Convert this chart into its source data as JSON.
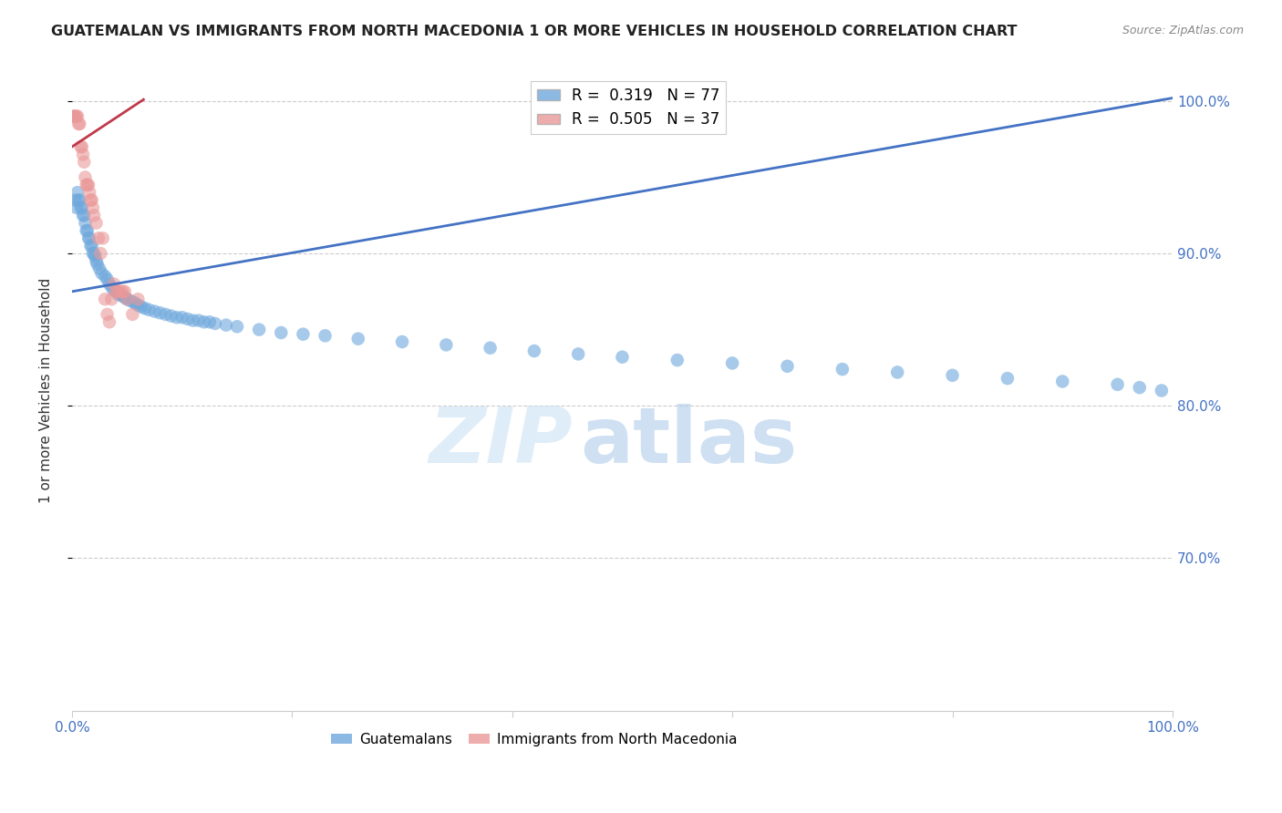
{
  "title": "GUATEMALAN VS IMMIGRANTS FROM NORTH MACEDONIA 1 OR MORE VEHICLES IN HOUSEHOLD CORRELATION CHART",
  "source": "Source: ZipAtlas.com",
  "ylabel": "1 or more Vehicles in Household",
  "xmin": 0.0,
  "xmax": 1.0,
  "ymin": 0.6,
  "ymax": 1.02,
  "ytick_positions": [
    0.7,
    0.8,
    0.9,
    1.0
  ],
  "ytick_labels": [
    "70.0%",
    "80.0%",
    "90.0%",
    "100.0%"
  ],
  "xtick_positions": [
    0.0,
    0.2,
    0.4,
    0.6,
    0.8,
    1.0
  ],
  "xtick_labels": [
    "0.0%",
    "",
    "",
    "",
    "",
    "100.0%"
  ],
  "blue_R": 0.319,
  "blue_N": 77,
  "pink_R": 0.505,
  "pink_N": 37,
  "blue_color": "#6fa8dc",
  "pink_color": "#ea9999",
  "trend_blue_color": "#4472c4",
  "trend_pink_color": "#c0394b",
  "blue_trend_x0": 0.0,
  "blue_trend_y0": 0.875,
  "blue_trend_x1": 1.0,
  "blue_trend_y1": 1.002,
  "pink_trend_x0": 0.0,
  "pink_trend_y0": 0.97,
  "pink_trend_x1": 0.065,
  "pink_trend_y1": 1.001,
  "blue_x": [
    0.003,
    0.004,
    0.005,
    0.006,
    0.007,
    0.008,
    0.009,
    0.01,
    0.011,
    0.012,
    0.013,
    0.014,
    0.015,
    0.016,
    0.017,
    0.018,
    0.019,
    0.02,
    0.021,
    0.022,
    0.023,
    0.025,
    0.027,
    0.03,
    0.032,
    0.034,
    0.036,
    0.038,
    0.04,
    0.042,
    0.044,
    0.046,
    0.048,
    0.05,
    0.053,
    0.056,
    0.058,
    0.06,
    0.063,
    0.066,
    0.07,
    0.075,
    0.08,
    0.085,
    0.09,
    0.095,
    0.1,
    0.105,
    0.11,
    0.115,
    0.12,
    0.125,
    0.13,
    0.14,
    0.15,
    0.17,
    0.19,
    0.21,
    0.23,
    0.26,
    0.3,
    0.34,
    0.38,
    0.42,
    0.46,
    0.5,
    0.55,
    0.6,
    0.65,
    0.7,
    0.75,
    0.8,
    0.85,
    0.9,
    0.95,
    0.97,
    0.99
  ],
  "blue_y": [
    0.935,
    0.93,
    0.94,
    0.935,
    0.935,
    0.93,
    0.93,
    0.925,
    0.925,
    0.92,
    0.915,
    0.915,
    0.91,
    0.91,
    0.905,
    0.905,
    0.9,
    0.9,
    0.898,
    0.895,
    0.893,
    0.89,
    0.887,
    0.885,
    0.883,
    0.88,
    0.878,
    0.876,
    0.875,
    0.873,
    0.873,
    0.872,
    0.871,
    0.87,
    0.869,
    0.868,
    0.867,
    0.866,
    0.865,
    0.864,
    0.863,
    0.862,
    0.861,
    0.86,
    0.859,
    0.858,
    0.858,
    0.857,
    0.856,
    0.856,
    0.855,
    0.855,
    0.854,
    0.853,
    0.852,
    0.85,
    0.848,
    0.847,
    0.846,
    0.844,
    0.842,
    0.84,
    0.838,
    0.836,
    0.834,
    0.832,
    0.83,
    0.828,
    0.826,
    0.824,
    0.822,
    0.82,
    0.818,
    0.816,
    0.814,
    0.812,
    0.81
  ],
  "pink_x": [
    0.001,
    0.002,
    0.003,
    0.004,
    0.005,
    0.006,
    0.007,
    0.008,
    0.009,
    0.01,
    0.011,
    0.012,
    0.013,
    0.014,
    0.015,
    0.016,
    0.017,
    0.018,
    0.019,
    0.02,
    0.022,
    0.024,
    0.026,
    0.028,
    0.03,
    0.032,
    0.034,
    0.036,
    0.038,
    0.04,
    0.042,
    0.044,
    0.046,
    0.048,
    0.05,
    0.055,
    0.06
  ],
  "pink_y": [
    0.99,
    0.99,
    0.99,
    0.99,
    0.99,
    0.985,
    0.985,
    0.97,
    0.97,
    0.965,
    0.96,
    0.95,
    0.945,
    0.945,
    0.945,
    0.94,
    0.935,
    0.935,
    0.93,
    0.925,
    0.92,
    0.91,
    0.9,
    0.91,
    0.87,
    0.86,
    0.855,
    0.87,
    0.88,
    0.875,
    0.875,
    0.875,
    0.875,
    0.875,
    0.87,
    0.86,
    0.87
  ],
  "watermark_zip": "ZIP",
  "watermark_atlas": "atlas",
  "watermark_color": "#d6e8f7",
  "scatter_size": 110,
  "scatter_alpha": 0.6
}
